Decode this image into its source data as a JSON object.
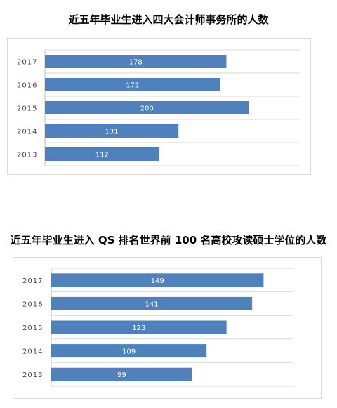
{
  "colors": {
    "bar": "#4f81bd",
    "grid": "#d9d9d9",
    "axis": "#bfbfbf"
  },
  "chart_data": [
    {
      "type": "bar",
      "orientation": "horizontal",
      "title": "近五年毕业生进入四大会计师事务所的人数",
      "categories": [
        "2017",
        "2016",
        "2015",
        "2014",
        "2013"
      ],
      "values": [
        178,
        172,
        200,
        131,
        112
      ],
      "xlim": [
        0,
        250
      ],
      "grid": true,
      "data_labels": true
    },
    {
      "type": "bar",
      "orientation": "horizontal",
      "title": "近五年毕业生进入 QS 排名世界前 100 名高校攻读硕士学位的人数",
      "categories": [
        "2017",
        "2016",
        "2015",
        "2014",
        "2013"
      ],
      "values": [
        149,
        141,
        123,
        109,
        99
      ],
      "xlim": [
        0,
        170
      ],
      "grid": true,
      "data_labels": true
    }
  ]
}
